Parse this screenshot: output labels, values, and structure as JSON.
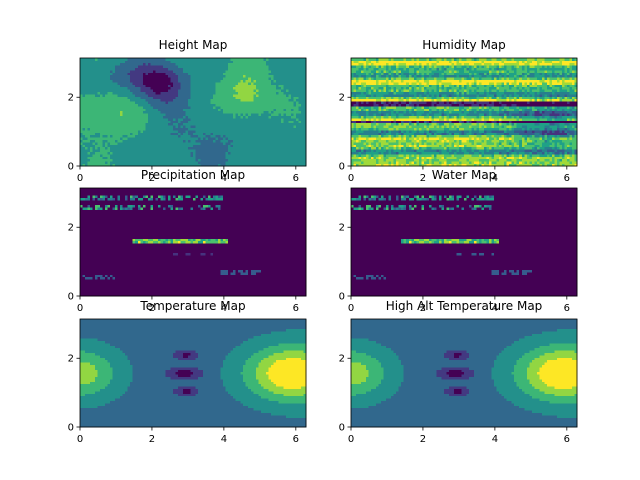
{
  "colormap": {
    "name": "viridis",
    "stops": [
      "#440154",
      "#46327e",
      "#365c8d",
      "#277f8e",
      "#1fa187",
      "#4ac16d",
      "#a0da39",
      "#fde725"
    ]
  },
  "background": "#ffffff",
  "chart_data": [
    {
      "type": "heatmap",
      "title": "Height Map",
      "xlim": [
        0,
        6.283
      ],
      "ylim": [
        0,
        3.1416
      ],
      "xticks": [
        "0",
        "2",
        "4",
        "6"
      ],
      "yticks": [
        "0",
        "2"
      ],
      "xtick_values": [
        0,
        2,
        4,
        6
      ],
      "ytick_values": [
        0,
        2
      ],
      "field": "height"
    },
    {
      "type": "heatmap",
      "title": "Humidity Map",
      "xlim": [
        0,
        6.283
      ],
      "ylim": [
        0,
        3.1416
      ],
      "xticks": [
        "0",
        "2",
        "4",
        "6"
      ],
      "yticks": [
        "0",
        "2"
      ],
      "xtick_values": [
        0,
        2,
        4,
        6
      ],
      "ytick_values": [
        0,
        2
      ],
      "field": "humidity"
    },
    {
      "type": "heatmap",
      "title": "Precipitation Map",
      "xlim": [
        0,
        6.283
      ],
      "ylim": [
        0,
        3.1416
      ],
      "xticks": [
        "0",
        "2",
        "4",
        "6"
      ],
      "yticks": [
        "0",
        "2"
      ],
      "xtick_values": [
        0,
        2,
        4,
        6
      ],
      "ytick_values": [
        0,
        2
      ],
      "field": "precipitation"
    },
    {
      "type": "heatmap",
      "title": "Water Map",
      "xlim": [
        0,
        6.283
      ],
      "ylim": [
        0,
        3.1416
      ],
      "xticks": [
        "0",
        "2",
        "4",
        "6"
      ],
      "yticks": [
        "0",
        "2"
      ],
      "xtick_values": [
        0,
        2,
        4,
        6
      ],
      "ytick_values": [
        0,
        2
      ],
      "field": "water"
    },
    {
      "type": "heatmap",
      "title": "Temperature Map",
      "xlim": [
        0,
        6.283
      ],
      "ylim": [
        0,
        3.1416
      ],
      "xticks": [
        "0",
        "2",
        "4",
        "6"
      ],
      "yticks": [
        "0",
        "2"
      ],
      "xtick_values": [
        0,
        2,
        4,
        6
      ],
      "ytick_values": [
        0,
        2
      ],
      "field": "temperature"
    },
    {
      "type": "heatmap",
      "title": "High Alt Temperature Map",
      "xlim": [
        0,
        6.283
      ],
      "ylim": [
        0,
        3.1416
      ],
      "xticks": [
        "0",
        "2",
        "4",
        "6"
      ],
      "yticks": [
        "0",
        "2"
      ],
      "xtick_values": [
        0,
        2,
        4,
        6
      ],
      "ytick_values": [
        0,
        2
      ],
      "field": "temperature"
    }
  ]
}
